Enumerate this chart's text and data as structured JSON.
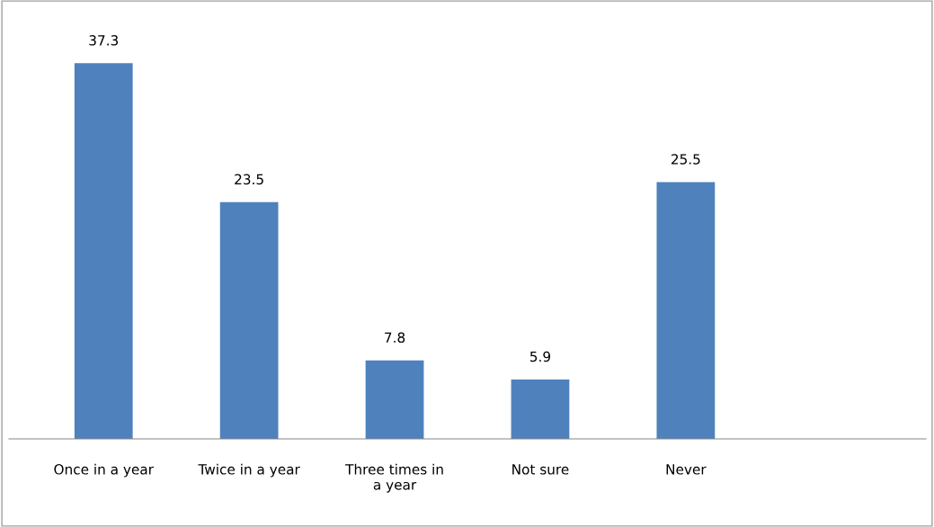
{
  "chart_data": {
    "type": "bar",
    "categories": [
      "Once in a year",
      "Twice in a year",
      "Three times in a year",
      "Not sure",
      "Never",
      null
    ],
    "values": [
      37.3,
      23.5,
      7.8,
      5.9,
      25.5,
      null
    ],
    "color": "#4f81bd",
    "data_labels": true,
    "grid": false,
    "legend": false
  }
}
